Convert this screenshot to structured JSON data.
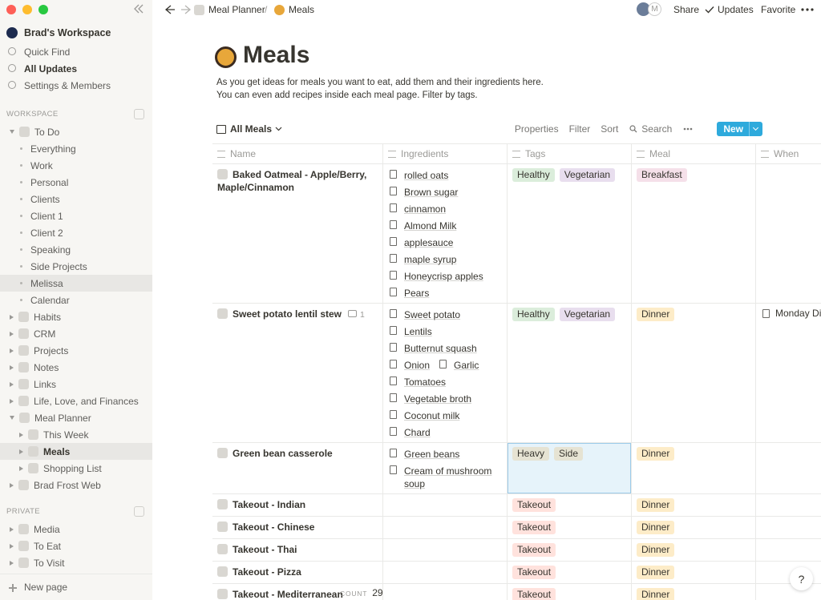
{
  "sidebar": {
    "workspace": "Brad's Workspace",
    "nav": [
      "Quick Find",
      "All Updates",
      "Settings & Members"
    ],
    "sections": [
      {
        "heading": "WORKSPACE",
        "pages": [
          {
            "label": "To Do",
            "views": [
              {
                "label": "Everything"
              },
              {
                "label": "Work"
              },
              {
                "label": "Personal"
              },
              {
                "label": "Clients"
              },
              {
                "label": "Client 1"
              },
              {
                "label": "Client 2"
              },
              {
                "label": "Speaking"
              },
              {
                "label": "Side Projects"
              },
              {
                "label": "Melissa",
                "highlighted": true
              },
              {
                "label": "Calendar"
              }
            ]
          },
          {
            "label": "Habits"
          },
          {
            "label": "CRM"
          },
          {
            "label": "Projects"
          },
          {
            "label": "Notes"
          },
          {
            "label": "Links"
          },
          {
            "label": "Life, Love, and Finances"
          },
          {
            "label": "Meal Planner",
            "children": [
              {
                "label": "This Week"
              },
              {
                "label": "Meals",
                "highlighted": true
              },
              {
                "label": "Shopping List"
              }
            ]
          },
          {
            "label": "Brad Frost Web"
          }
        ]
      },
      {
        "heading": "PRIVATE",
        "pages": [
          {
            "label": "Media"
          },
          {
            "label": "To Eat"
          },
          {
            "label": "To Visit"
          }
        ]
      }
    ],
    "new_page": "New page"
  },
  "topbar": {
    "breadcrumb": [
      "Meal Planner",
      "Meals"
    ],
    "separator": "/",
    "avatar": "M",
    "actions": [
      "Share",
      "Updates",
      "Favorite"
    ]
  },
  "page": {
    "title": "Meals",
    "description": [
      "As you get ideas for meals you want to eat, add them and their ingredients here.",
      "You can even add recipes inside each meal page. Filter by tags."
    ],
    "view": "All Meals",
    "toolbar": [
      "Properties",
      "Filter",
      "Sort",
      "Search"
    ],
    "new_button": "New",
    "columns": [
      "Name",
      "Ingredients",
      "Tags",
      "Meal",
      "When"
    ],
    "rows": [
      {
        "name": "Baked Oatmeal - Apple/Berry, Maple/Cinnamon",
        "ingredients": [
          [
            "rolled oats"
          ],
          [
            "Brown sugar"
          ],
          [
            "cinnamon"
          ],
          [
            "Almond Milk"
          ],
          [
            "applesauce"
          ],
          [
            "maple syrup"
          ],
          [
            "Honeycrisp apples"
          ],
          [
            "Pears"
          ]
        ],
        "tags": [
          {
            "text": "Healthy",
            "color": "#dbeddb"
          },
          {
            "text": "Vegetarian",
            "color": "#e8deee"
          }
        ],
        "meal": {
          "text": "Breakfast",
          "color": "#f5e0e9"
        }
      },
      {
        "name": "Sweet potato lentil stew",
        "comments": 1,
        "ingredients": [
          [
            "Sweet potato"
          ],
          [
            "Lentils"
          ],
          [
            "Butternut squash"
          ],
          [
            "Onion",
            "Garlic"
          ],
          [
            "Tomatoes"
          ],
          [
            "Vegetable broth"
          ],
          [
            "Coconut milk"
          ],
          [
            "Chard"
          ]
        ],
        "tags": [
          {
            "text": "Healthy",
            "color": "#dbeddb"
          },
          {
            "text": "Vegetarian",
            "color": "#e8deee"
          }
        ],
        "meal": {
          "text": "Dinner",
          "color": "#fdecc8"
        },
        "when": "Monday Dinner"
      },
      {
        "name": "Green bean casserole",
        "ingredients": [
          [
            "Green beans"
          ],
          [
            "Cream of mushroom soup"
          ]
        ],
        "tags": [
          {
            "text": "Heavy",
            "color": "#e6e3d3"
          },
          {
            "text": "Side",
            "color": "#e6e3d3"
          }
        ],
        "meal": {
          "text": "Dinner",
          "color": "#fdecc8"
        }
      },
      {
        "name": "Takeout - Indian",
        "tags": [
          {
            "text": "Takeout",
            "color": "#ffe2dd"
          }
        ],
        "meal": {
          "text": "Dinner",
          "color": "#fdecc8"
        }
      },
      {
        "name": "Takeout - Chinese",
        "tags": [
          {
            "text": "Takeout",
            "color": "#ffe2dd"
          }
        ],
        "meal": {
          "text": "Dinner",
          "color": "#fdecc8"
        }
      },
      {
        "name": "Takeout - Thai",
        "tags": [
          {
            "text": "Takeout",
            "color": "#ffe2dd"
          }
        ],
        "meal": {
          "text": "Dinner",
          "color": "#fdecc8"
        }
      },
      {
        "name": "Takeout - Pizza",
        "tags": [
          {
            "text": "Takeout",
            "color": "#ffe2dd"
          }
        ],
        "meal": {
          "text": "Dinner",
          "color": "#fdecc8"
        }
      },
      {
        "name": "Takeout - Mediterranean",
        "tags": [
          {
            "text": "Takeout",
            "color": "#ffe2dd"
          }
        ],
        "meal": {
          "text": "Dinner",
          "color": "#fdecc8"
        }
      }
    ],
    "count_label": "COUNT",
    "count": 29
  },
  "help": "?"
}
